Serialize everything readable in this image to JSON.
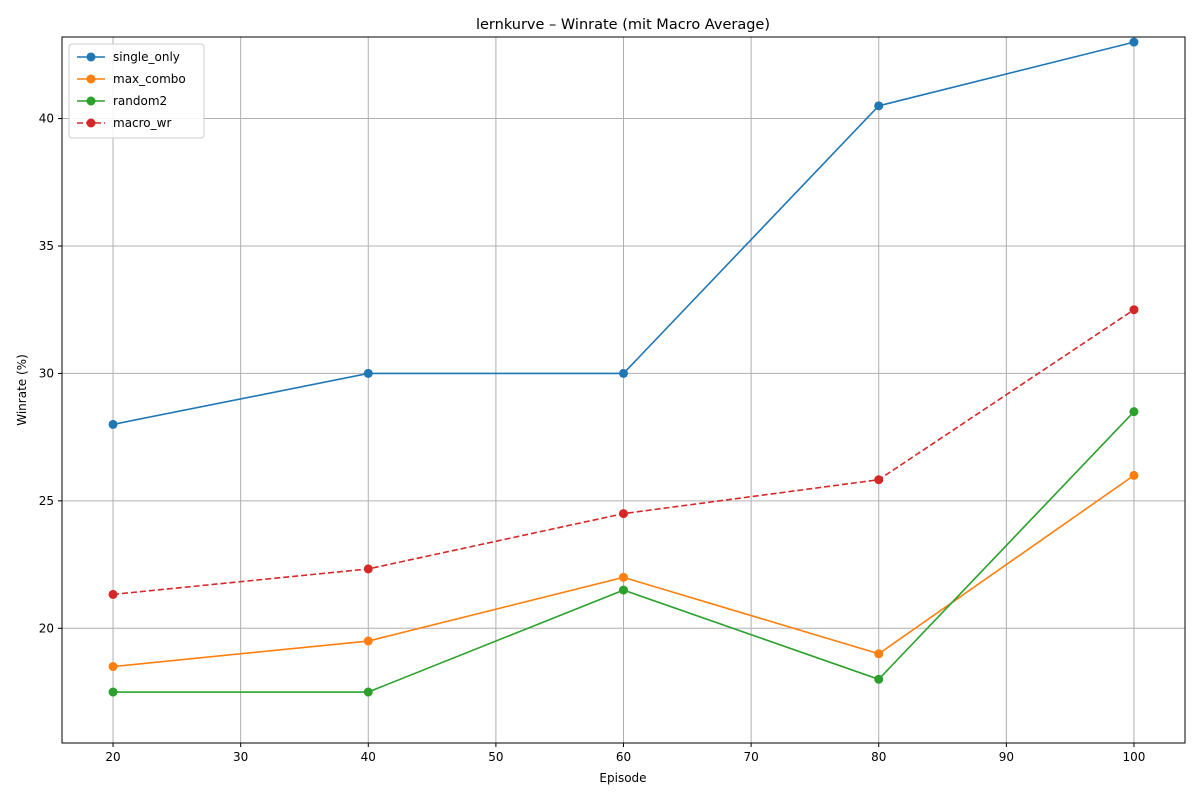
{
  "chart_data": {
    "type": "line",
    "title": "lernkurve – Winrate (mit Macro Average)",
    "xlabel": "Episode",
    "ylabel": "Winrate (%)",
    "x": [
      20,
      40,
      60,
      80,
      100
    ],
    "xlim": [
      16,
      104
    ],
    "ylim": [
      15.5,
      43.2
    ],
    "xticks": [
      20,
      30,
      40,
      50,
      60,
      70,
      80,
      90,
      100
    ],
    "yticks": [
      20,
      25,
      30,
      35,
      40
    ],
    "grid": true,
    "legend_position": "top-left",
    "series": [
      {
        "name": "single_only",
        "color": "#1f77b4",
        "dashed": false,
        "values": [
          28.0,
          30.0,
          30.0,
          40.5,
          43.0
        ]
      },
      {
        "name": "max_combo",
        "color": "#ff7f0e",
        "dashed": false,
        "values": [
          18.5,
          19.5,
          22.0,
          19.0,
          26.0
        ]
      },
      {
        "name": "random2",
        "color": "#2ca02c",
        "dashed": false,
        "values": [
          17.5,
          17.5,
          21.5,
          18.0,
          28.5
        ]
      },
      {
        "name": "macro_wr",
        "color": "#d62728",
        "dashed": true,
        "values": [
          21.33,
          22.33,
          24.5,
          25.83,
          32.5
        ]
      }
    ]
  }
}
